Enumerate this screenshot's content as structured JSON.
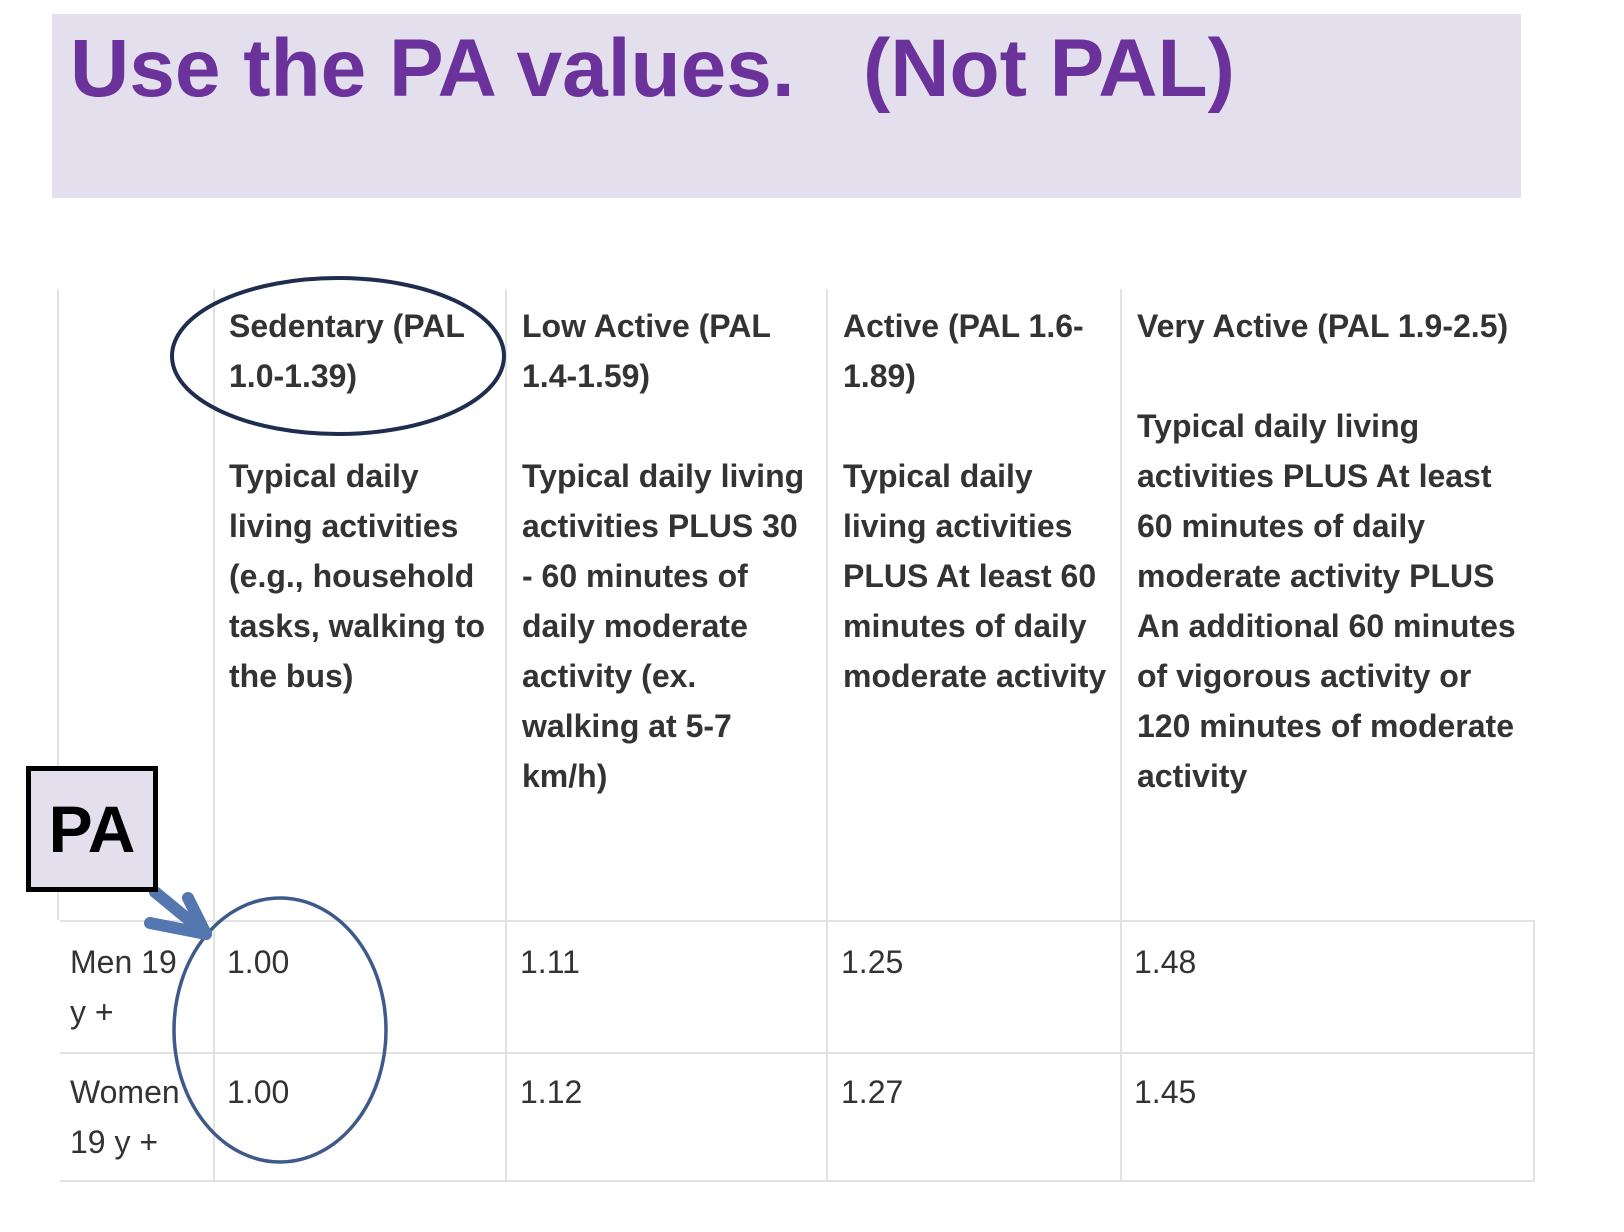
{
  "title": "Use the PA values.   (Not PAL)",
  "table": {
    "columns": [
      {
        "heading": "Sedentary (PAL 1.0-1.39)",
        "description": "Typical daily living activities (e.g., household tasks, walking to the bus)"
      },
      {
        "heading": "Low Active (PAL 1.4-1.59)",
        "description": "Typical daily living activities PLUS 30 - 60 minutes of daily moderate activity (ex. walking at 5-7 km/h)"
      },
      {
        "heading": "Active (PAL 1.6-1.89)",
        "description": "Typical daily living activities PLUS At least 60 minutes of daily moderate activity"
      },
      {
        "heading": "Very Active (PAL 1.9-2.5)",
        "description": "Typical daily living activities PLUS At least 60 minutes of daily moderate activity PLUS An additional 60 minutes of vigorous activity or 120 minutes of moderate activity"
      }
    ],
    "rows": [
      {
        "label": "Men 19 y +",
        "values": [
          "1.00",
          "1.11",
          "1.25",
          "1.48"
        ]
      },
      {
        "label": "Women 19 y +",
        "values": [
          "1.00",
          "1.12",
          "1.27",
          "1.45"
        ]
      }
    ]
  },
  "annotation": {
    "label": "PA",
    "circle_color": "#1f2d4f",
    "value_circle_color": "#3d5a8a",
    "arrow_color": "#5577b0"
  },
  "colors": {
    "title": "#6a329a",
    "banner": "#e4dfec"
  }
}
